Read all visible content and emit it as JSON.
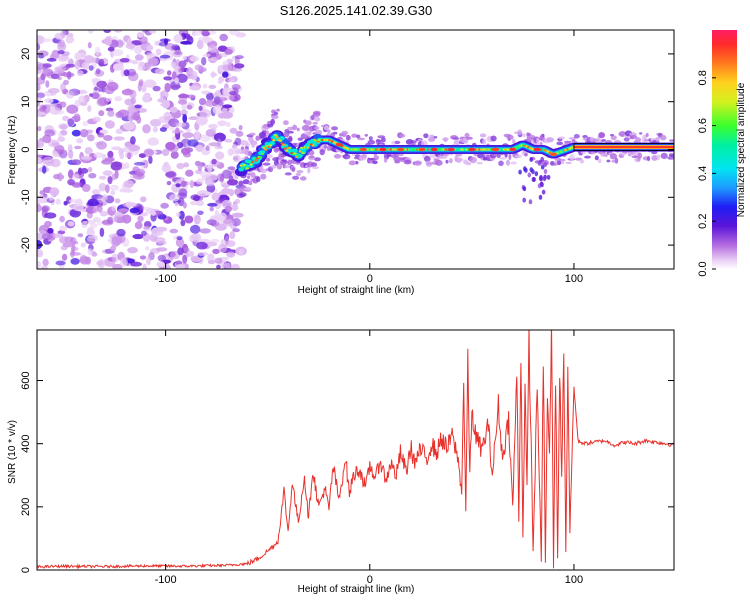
{
  "title": "S126.2025.141.02.39.G30",
  "colors": {
    "background": "#ffffff",
    "snr_line": "#e8312b",
    "axis": "#000000",
    "noise_purple": "#7a3cd6"
  },
  "chart_data": [
    {
      "type": "heatmap",
      "xlabel": "Height of straight line (km)",
      "ylabel": "Frequency (Hz)",
      "xlim": [
        -163,
        149
      ],
      "ylim": [
        -25,
        25
      ],
      "x_ticks": [
        -100,
        0,
        100
      ],
      "y_ticks": [
        -20,
        -10,
        0,
        10,
        20
      ],
      "grid": false,
      "colorbar": {
        "label": "Normalized spectral amplitude",
        "range": [
          0,
          1
        ],
        "ticks": [
          0.0,
          0.2,
          0.4,
          0.6,
          0.8
        ],
        "tick_labels": [
          "0.0",
          "0.2",
          "0.4",
          "0.6",
          "0.8"
        ],
        "colormap": "hsv-rainbow (white/purple low, red high)"
      },
      "regions": [
        {
          "x_range": [
            -163,
            -63
          ],
          "description": "random noise speckle, amplitude 0.1-0.3"
        },
        {
          "x_range": [
            -63,
            100
          ],
          "description": "narrow signal band near 0 Hz with wobbles"
        },
        {
          "x_range": [
            100,
            149
          ],
          "description": "steady red band at ~0.5 Hz"
        }
      ],
      "ridge": {
        "x": [
          -63,
          -55,
          -50,
          -45,
          -40,
          -35,
          -30,
          -25,
          -20,
          -15,
          -10,
          0,
          10,
          20,
          30,
          40,
          50,
          60,
          70,
          75,
          80,
          85,
          90,
          100,
          110,
          120,
          130,
          140,
          149
        ],
        "y": [
          -4,
          -2,
          1,
          3,
          0,
          -1,
          1,
          2,
          2,
          1,
          0,
          0,
          0,
          0,
          0,
          0,
          0,
          0,
          0,
          1,
          0,
          0,
          -1,
          0.5,
          0.5,
          0.5,
          0.5,
          0.5,
          0.5
        ]
      }
    },
    {
      "type": "line",
      "xlabel": "Height of straight line (km)",
      "ylabel": "SNR (10 * v/v)",
      "xlim": [
        -163,
        149
      ],
      "ylim": [
        0,
        760
      ],
      "x_ticks": [
        -100,
        0,
        100
      ],
      "y_ticks": [
        0,
        200,
        400,
        600
      ],
      "grid": false,
      "series": [
        {
          "color": "#e8312b",
          "x": [
            -163,
            -150,
            -130,
            -110,
            -90,
            -70,
            -60,
            -55,
            -50,
            -45,
            -42,
            -40,
            -38,
            -35,
            -32,
            -30,
            -28,
            -25,
            -22,
            -20,
            -18,
            -15,
            -12,
            -10,
            -8,
            -5,
            -2,
            0,
            3,
            5,
            8,
            10,
            13,
            15,
            18,
            20,
            22,
            25,
            28,
            30,
            33,
            35,
            38,
            40,
            43,
            45,
            46,
            47,
            48,
            49,
            50,
            52,
            55,
            58,
            60,
            63,
            65,
            68,
            70,
            72,
            73,
            74,
            75,
            76,
            77,
            78,
            80,
            82,
            84,
            85,
            86,
            87,
            88,
            89,
            90,
            91,
            92,
            93,
            94,
            95,
            96,
            97,
            98,
            100,
            102,
            105,
            110,
            115,
            120,
            125,
            130,
            135,
            140,
            145,
            149
          ],
          "y": [
            10,
            12,
            11,
            13,
            12,
            15,
            20,
            35,
            60,
            90,
            250,
            120,
            280,
            150,
            300,
            160,
            320,
            200,
            260,
            190,
            330,
            220,
            360,
            240,
            300,
            320,
            260,
            330,
            290,
            350,
            280,
            340,
            300,
            370,
            310,
            390,
            340,
            380,
            350,
            400,
            370,
            420,
            380,
            430,
            360,
            250,
            590,
            180,
            650,
            300,
            500,
            420,
            380,
            460,
            300,
            520,
            350,
            480,
            200,
            620,
            150,
            700,
            100,
            600,
            250,
            740,
            60,
            580,
            30,
            690,
            20,
            560,
            350,
            760,
            10,
            620,
            40,
            640,
            300,
            700,
            60,
            650,
            120,
            580,
            410,
            400,
            405,
            410,
            395,
            405,
            400,
            410,
            405,
            400,
            395
          ]
        }
      ]
    }
  ]
}
